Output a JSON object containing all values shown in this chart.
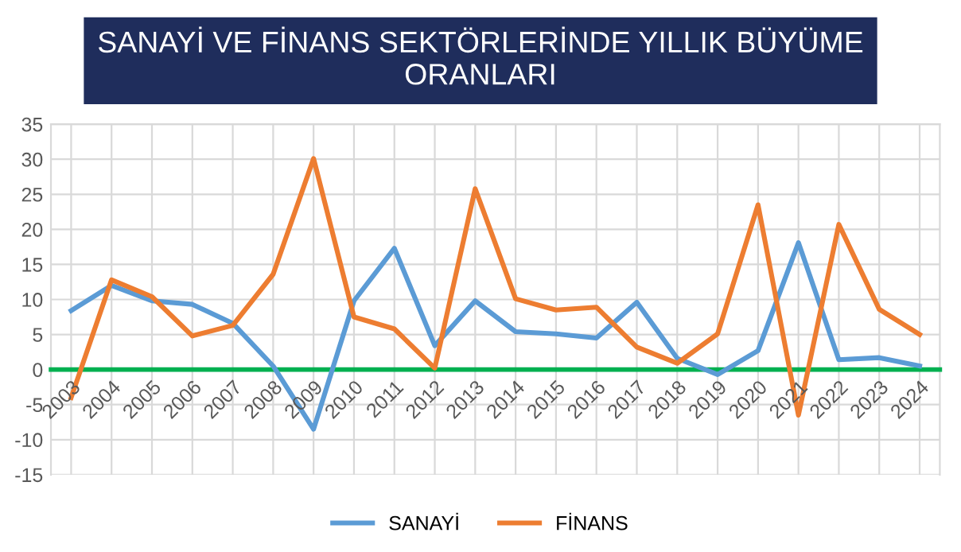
{
  "chart_data": {
    "type": "line",
    "title": "SANAYİ VE FİNANS SEKTÖRLERİNDE YILLIK BÜYÜME\nORANLARI",
    "categories": [
      "2003",
      "2004",
      "2005",
      "2006",
      "2007",
      "2008",
      "2009",
      "2010",
      "2011",
      "2012",
      "2013",
      "2014",
      "2015",
      "2016",
      "2017",
      "2018",
      "2019",
      "2020",
      "2021",
      "2022",
      "2023",
      "2024"
    ],
    "series": [
      {
        "name": "SANAYİ",
        "color": "#5b9bd5",
        "values": [
          8.4,
          12,
          9.8,
          9.3,
          6.6,
          0.5,
          -8.5,
          9.8,
          17.3,
          3.4,
          9.8,
          5.4,
          5.1,
          4.5,
          9.6,
          1.6,
          -0.7,
          2.7,
          18.1,
          1.4,
          1.7,
          0.5
        ]
      },
      {
        "name": "FİNANS",
        "color": "#ed7d31",
        "values": [
          -4,
          12.8,
          10.4,
          4.8,
          6.3,
          13.6,
          30.1,
          7.5,
          5.8,
          0.2,
          25.8,
          10.1,
          8.5,
          8.9,
          3.2,
          0.9,
          5.1,
          23.5,
          -6.5,
          20.7,
          8.6,
          5.0
        ]
      }
    ],
    "ylim": [
      -15,
      35
    ],
    "yticks": [
      -15,
      -10,
      -5,
      0,
      5,
      10,
      15,
      20,
      25,
      30,
      35
    ],
    "grid": true,
    "legend": "bottom",
    "marker": "none",
    "line_style": "solid"
  }
}
